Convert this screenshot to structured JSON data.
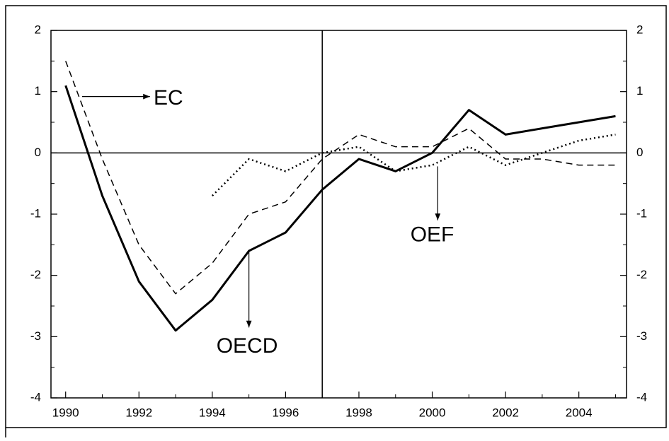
{
  "chart_data": {
    "type": "line",
    "x": [
      1990,
      1991,
      1992,
      1993,
      1994,
      1995,
      1996,
      1997,
      1998,
      1999,
      2000,
      2001,
      2002,
      2003,
      2004,
      2005
    ],
    "series": [
      {
        "name": "OECD",
        "color": "#000000",
        "dash": "solid",
        "width": 3,
        "values": [
          1.1,
          -0.7,
          -2.1,
          -2.9,
          -2.4,
          -1.6,
          -1.3,
          -0.6,
          -0.1,
          -0.3,
          0.0,
          0.7,
          0.3,
          0.4,
          0.5,
          0.6
        ]
      },
      {
        "name": "EC",
        "color": "#000000",
        "dash": "dashed",
        "width": 1.5,
        "values": [
          1.5,
          -0.1,
          -1.5,
          -2.3,
          -1.8,
          -1.0,
          -0.8,
          -0.1,
          0.3,
          0.1,
          0.1,
          0.4,
          -0.1,
          -0.1,
          -0.2,
          -0.2
        ]
      },
      {
        "name": "OEF",
        "color": "#000000",
        "dash": "dotted",
        "width": 2.5,
        "values": [
          null,
          null,
          null,
          null,
          -0.7,
          -0.1,
          -0.3,
          0.0,
          0.1,
          -0.3,
          -0.2,
          0.1,
          -0.2,
          0.0,
          0.2,
          0.3
        ]
      }
    ],
    "xlim": [
      1989.6,
      2005.3
    ],
    "xticks": [
      1990,
      1992,
      1994,
      1996,
      1998,
      2000,
      2002,
      2004
    ],
    "xminorticks": [
      1991,
      1993,
      1995,
      1997,
      1999,
      2001,
      2003,
      2005
    ],
    "ylim": [
      -4,
      2
    ],
    "yticks": [
      -4,
      -3,
      -2,
      -1,
      0,
      1,
      2
    ],
    "yminorticks": [
      -3.5,
      -2.5,
      -1.5,
      -0.5,
      0.5,
      1.5
    ],
    "reference_x": 1997,
    "reference_y": 0,
    "grid": false
  }
}
